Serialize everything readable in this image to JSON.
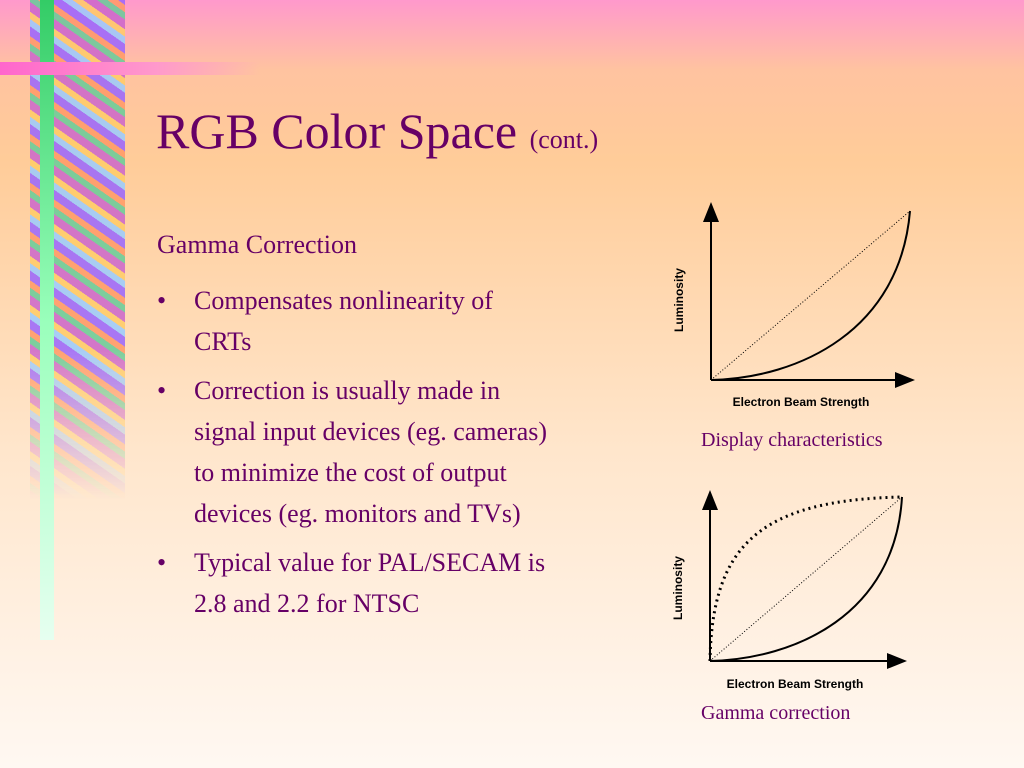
{
  "slide": {
    "title": "RGB Color Space",
    "title_suffix": "(cont.)",
    "section": "Gamma Correction",
    "bullets": [
      "Compensates nonlinearity of CRTs",
      "Correction is usually made in signal input devices (eg. cameras) to minimize the cost of output devices (eg. monitors and TVs)",
      "Typical value for PAL/SECAM is 2.8 and 2.2 for NTSC"
    ],
    "figures": [
      {
        "y_label": "Luminosity",
        "x_label": "Electron Beam Strength",
        "caption": "Display characteristics"
      },
      {
        "y_label": "Luminosity",
        "x_label": "Electron Beam Strength",
        "caption": "Gamma correction"
      }
    ]
  }
}
